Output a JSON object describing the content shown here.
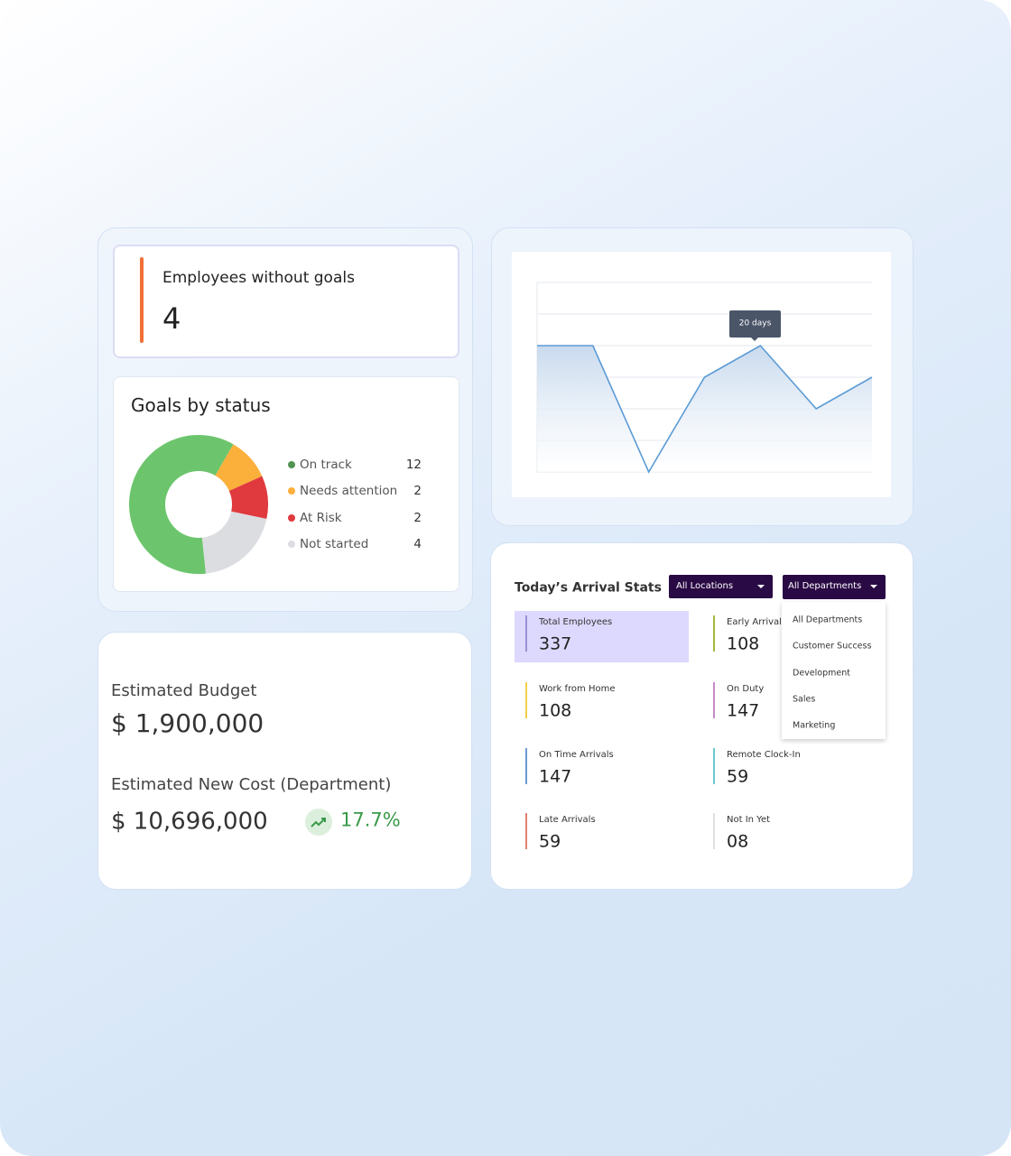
{
  "employees_without_goals": {
    "title": "Employees without goals",
    "value": 4
  },
  "chart_data": [
    {
      "type": "pie",
      "title": "Goals by status",
      "categories": [
        "On track",
        "Needs attention",
        "At Risk",
        "Not started"
      ],
      "values": [
        12,
        2,
        2,
        4
      ],
      "colors": [
        "#6cc56c",
        "#fbb03b",
        "#e0393e",
        "#dcdde1"
      ]
    },
    {
      "type": "line",
      "categories": [
        null,
        null,
        null,
        null,
        null,
        null,
        null
      ],
      "values": [
        4,
        4,
        0,
        3,
        4,
        2,
        3
      ],
      "color": "#5b9bd5",
      "ylim": [
        0,
        6
      ],
      "yticks": [
        0,
        1,
        2,
        3,
        4,
        5,
        6
      ],
      "grid": true,
      "annotation": "20 days"
    }
  ],
  "budget": {
    "estimated_budget": {
      "label": "Estimated Budget",
      "value": "$ 1,900,000"
    },
    "estimated_new_cost": {
      "label": "Estimated New Cost (Department)",
      "value": "$ 10,696,000",
      "change": "17.7%"
    }
  },
  "arrival_stats": {
    "title": "Today’s Arrival Stats",
    "location_filter": "All Locations",
    "department_filter": "All Departments",
    "department_options": [
      "All Departments",
      "Customer Success",
      "Development",
      "Sales",
      "Marketing"
    ],
    "stats": [
      {
        "label": "Total Employees",
        "value": "337",
        "color": "#9b8fd6"
      },
      {
        "label": "Early Arrivals",
        "value": "108",
        "color": "#a5b83a"
      },
      {
        "label": "Work from Home",
        "value": "108",
        "color": "#f0cf4a"
      },
      {
        "label": "On Duty",
        "value": "147",
        "color": "#c58bc4"
      },
      {
        "label": "On Time Arrivals",
        "value": "147",
        "color": "#6b9bd1"
      },
      {
        "label": "Remote Clock-In",
        "value": "59",
        "color": "#6cc6cf"
      },
      {
        "label": "Late Arrivals",
        "value": "59",
        "color": "#e08070"
      },
      {
        "label": "Not In Yet",
        "value": "08",
        "color": "#e0e0e0"
      }
    ]
  }
}
